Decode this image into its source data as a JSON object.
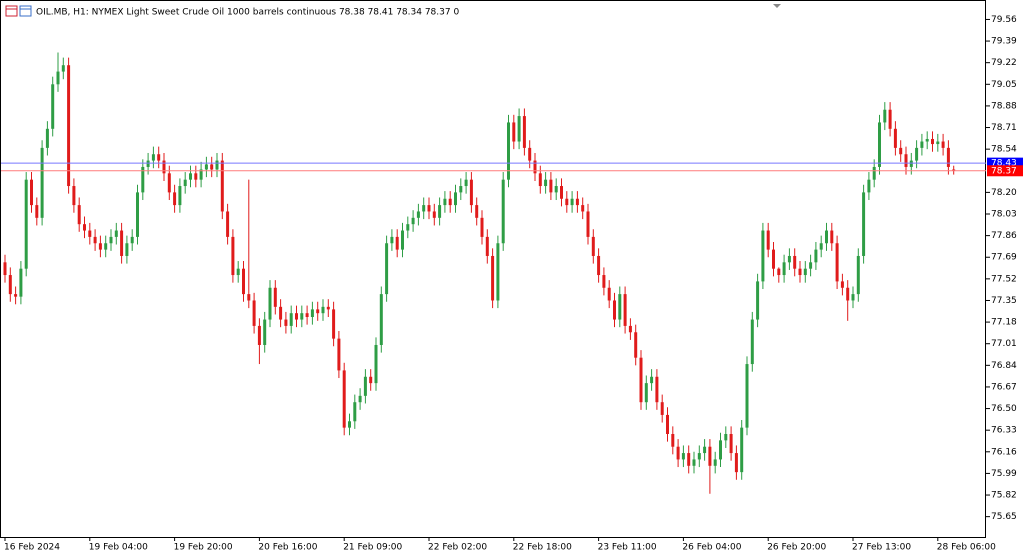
{
  "chart_data": {
    "type": "candlestick",
    "title": "OIL.MB, H1:  NYMEX Light Sweet Crude Oil 1000 barrels continuous  78.38 78.41 78.34 78.37  0",
    "up_color": "#2e9d45",
    "down_color": "#e01b1b",
    "ask": 78.43,
    "ask_color": "#7878ff",
    "bid": 78.37,
    "bid_color": "#ff7c7c",
    "ylim": [
      75.49,
      79.65
    ],
    "yticks": [
      79.56,
      79.39,
      79.22,
      79.05,
      78.88,
      78.71,
      78.54,
      {
        "value": 78.2,
        "label": "78.20"
      },
      78.03,
      77.86,
      77.69,
      77.52,
      77.35,
      77.18,
      77.01,
      76.84,
      76.67,
      {
        "value": 76.5,
        "label": "76.50"
      },
      76.33,
      76.16,
      75.99,
      75.82,
      75.65
    ],
    "categories": [
      "16 Feb 2024",
      null,
      null,
      null,
      null,
      null,
      null,
      null,
      null,
      null,
      null,
      null,
      null,
      null,
      null,
      null,
      "19 Feb 04:00",
      null,
      null,
      null,
      null,
      null,
      null,
      null,
      null,
      null,
      null,
      null,
      null,
      null,
      null,
      null,
      "19 Feb 20:00",
      null,
      null,
      null,
      null,
      null,
      null,
      null,
      null,
      null,
      null,
      null,
      null,
      null,
      null,
      null,
      "20 Feb 16:00",
      null,
      null,
      null,
      null,
      null,
      null,
      null,
      null,
      null,
      null,
      null,
      null,
      null,
      null,
      null,
      "21 Feb 09:00",
      null,
      null,
      null,
      null,
      null,
      null,
      null,
      null,
      null,
      null,
      null,
      null,
      null,
      null,
      null,
      "22 Feb 02:00",
      null,
      null,
      null,
      null,
      null,
      null,
      null,
      null,
      null,
      null,
      null,
      null,
      null,
      null,
      null,
      "22 Feb 18:00",
      null,
      null,
      null,
      null,
      null,
      null,
      null,
      null,
      null,
      null,
      null,
      null,
      null,
      null,
      null,
      "23 Feb 11:00",
      null,
      null,
      null,
      null,
      null,
      null,
      null,
      null,
      null,
      null,
      null,
      null,
      null,
      null,
      null,
      "26 Feb 04:00",
      null,
      null,
      null,
      null,
      null,
      null,
      null,
      null,
      null,
      null,
      null,
      null,
      null,
      null,
      null,
      "26 Feb 20:00",
      null,
      null,
      null,
      null,
      null,
      null,
      null,
      null,
      null,
      null,
      null,
      null,
      null,
      null,
      null,
      "27 Feb 13:00",
      null,
      null,
      null,
      null,
      null,
      null,
      null,
      null,
      null,
      null,
      null,
      null,
      null,
      null,
      null,
      "28 Feb 06:00",
      null,
      null,
      null
    ],
    "open": [
      77.65,
      77.55,
      77.4,
      77.38,
      77.6,
      78.3,
      78.1,
      78.0,
      78.55,
      78.7,
      79.05,
      79.15,
      79.2,
      78.25,
      78.1,
      77.95,
      77.9,
      77.85,
      77.8,
      77.75,
      77.8,
      77.85,
      77.9,
      77.7,
      77.8,
      77.85,
      78.2,
      78.4,
      78.45,
      78.5,
      78.45,
      78.35,
      78.2,
      78.1,
      78.25,
      78.3,
      78.35,
      78.3,
      78.38,
      78.42,
      78.38,
      78.45,
      78.05,
      77.85,
      77.55,
      77.6,
      77.4,
      77.35,
      77.15,
      77.0,
      77.2,
      77.45,
      77.3,
      77.2,
      77.15,
      77.25,
      77.2,
      77.25,
      77.22,
      77.28,
      77.25,
      77.3,
      77.28,
      77.05,
      76.8,
      76.35,
      76.4,
      76.55,
      76.6,
      76.75,
      76.7,
      77.0,
      77.4,
      77.8,
      77.85,
      77.75,
      77.9,
      77.95,
      78.0,
      78.05,
      78.1,
      78.05,
      78.0,
      78.1,
      78.15,
      78.1,
      78.2,
      78.25,
      78.3,
      78.1,
      78.0,
      77.85,
      77.7,
      77.35,
      77.8,
      78.3,
      78.75,
      78.6,
      78.8,
      78.55,
      78.45,
      78.35,
      78.25,
      78.3,
      78.2,
      78.25,
      78.15,
      78.1,
      78.15,
      78.1,
      78.05,
      77.85,
      77.7,
      77.55,
      77.45,
      77.35,
      77.2,
      77.4,
      77.15,
      77.1,
      76.9,
      76.55,
      76.7,
      76.75,
      76.55,
      76.45,
      76.3,
      76.2,
      76.1,
      76.15,
      76.05,
      76.1,
      76.15,
      76.2,
      76.05,
      76.1,
      76.25,
      76.3,
      76.15,
      76.0,
      76.35,
      76.85,
      77.2,
      77.5,
      77.9,
      77.75,
      77.6,
      77.55,
      77.65,
      77.7,
      77.6,
      77.55,
      77.6,
      77.65,
      77.75,
      77.8,
      77.9,
      77.8,
      77.5,
      77.45,
      77.35,
      77.4,
      77.7,
      78.2,
      78.3,
      78.4,
      78.75,
      78.85,
      78.7,
      78.55,
      78.5,
      78.4,
      78.45,
      78.55,
      78.6,
      78.62,
      78.58,
      78.6,
      78.55,
      78.38
    ],
    "high": [
      77.71,
      77.61,
      77.46,
      77.66,
      78.36,
      78.36,
      78.16,
      78.61,
      78.76,
      79.11,
      79.3,
      79.26,
      79.26,
      78.31,
      78.16,
      78.01,
      77.96,
      77.91,
      77.86,
      77.86,
      77.91,
      77.96,
      77.96,
      77.86,
      77.91,
      78.26,
      78.46,
      78.51,
      78.56,
      78.56,
      78.51,
      78.41,
      78.26,
      78.31,
      78.36,
      78.41,
      78.41,
      78.44,
      78.48,
      78.48,
      78.51,
      78.51,
      78.11,
      77.91,
      77.66,
      77.66,
      78.3,
      77.41,
      77.21,
      77.26,
      77.51,
      77.51,
      77.36,
      77.26,
      77.31,
      77.31,
      77.31,
      77.31,
      77.34,
      77.34,
      77.36,
      77.36,
      77.34,
      77.11,
      76.86,
      76.46,
      76.61,
      76.66,
      76.81,
      76.81,
      77.06,
      77.46,
      77.86,
      77.91,
      77.91,
      77.96,
      78.01,
      78.06,
      78.11,
      78.16,
      78.16,
      78.11,
      78.16,
      78.21,
      78.21,
      78.26,
      78.31,
      78.36,
      78.36,
      78.16,
      78.06,
      77.91,
      77.76,
      77.86,
      78.36,
      78.81,
      78.81,
      78.86,
      78.86,
      78.61,
      78.51,
      78.41,
      78.36,
      78.36,
      78.31,
      78.31,
      78.21,
      78.21,
      78.21,
      78.16,
      78.11,
      77.91,
      77.76,
      77.61,
      77.51,
      77.41,
      77.46,
      77.46,
      77.21,
      77.16,
      76.96,
      76.76,
      76.81,
      76.81,
      76.61,
      76.51,
      76.36,
      76.26,
      76.21,
      76.21,
      76.16,
      76.21,
      76.26,
      76.26,
      76.16,
      76.31,
      76.36,
      76.36,
      76.21,
      76.41,
      76.91,
      77.26,
      77.56,
      77.96,
      77.96,
      77.81,
      77.61,
      77.71,
      77.76,
      77.76,
      77.66,
      77.66,
      77.71,
      77.81,
      77.86,
      77.96,
      77.96,
      77.86,
      77.56,
      77.51,
      77.46,
      77.76,
      78.26,
      78.36,
      78.46,
      78.81,
      78.91,
      78.91,
      78.76,
      78.61,
      78.56,
      78.51,
      78.61,
      78.66,
      78.68,
      78.68,
      78.66,
      78.66,
      78.61,
      78.41
    ],
    "low": [
      77.49,
      77.34,
      77.32,
      77.32,
      77.54,
      78.04,
      77.94,
      77.94,
      78.49,
      78.64,
      78.99,
      79.09,
      78.19,
      78.04,
      77.89,
      77.84,
      77.79,
      77.74,
      77.69,
      77.69,
      77.74,
      77.79,
      77.64,
      77.64,
      77.74,
      77.79,
      78.14,
      78.34,
      78.39,
      78.39,
      78.29,
      78.14,
      78.04,
      78.04,
      78.19,
      78.24,
      78.24,
      78.24,
      78.32,
      78.32,
      78.32,
      77.99,
      77.79,
      77.49,
      77.49,
      77.34,
      77.29,
      77.09,
      76.85,
      76.94,
      77.14,
      77.24,
      77.14,
      77.09,
      77.09,
      77.14,
      77.14,
      77.16,
      77.16,
      77.19,
      77.19,
      77.22,
      76.99,
      76.74,
      76.29,
      76.29,
      76.34,
      76.49,
      76.54,
      76.64,
      76.64,
      76.94,
      77.34,
      77.74,
      77.69,
      77.69,
      77.84,
      77.89,
      77.94,
      77.99,
      77.99,
      77.94,
      77.94,
      78.04,
      78.04,
      78.04,
      78.14,
      78.19,
      78.04,
      77.94,
      77.79,
      77.64,
      77.29,
      77.29,
      77.74,
      78.24,
      78.54,
      78.54,
      78.49,
      78.39,
      78.29,
      78.19,
      78.19,
      78.14,
      78.14,
      78.09,
      78.04,
      78.04,
      78.04,
      77.99,
      77.79,
      77.64,
      77.49,
      77.39,
      77.29,
      77.14,
      77.14,
      77.09,
      77.04,
      76.84,
      76.49,
      76.49,
      76.64,
      76.49,
      76.39,
      76.24,
      76.14,
      76.04,
      76.04,
      75.99,
      75.99,
      76.04,
      76.09,
      75.83,
      75.99,
      76.04,
      76.19,
      76.09,
      75.94,
      75.94,
      76.29,
      76.79,
      77.14,
      77.44,
      77.69,
      77.54,
      77.49,
      77.49,
      77.59,
      77.54,
      77.49,
      77.49,
      77.54,
      77.59,
      77.69,
      77.74,
      77.74,
      77.44,
      77.39,
      77.19,
      77.29,
      77.34,
      77.64,
      78.14,
      78.24,
      78.34,
      78.69,
      78.64,
      78.49,
      78.44,
      78.34,
      78.34,
      78.39,
      78.49,
      78.54,
      78.52,
      78.52,
      78.49,
      78.34,
      78.34
    ],
    "close": [
      77.55,
      77.4,
      77.38,
      77.6,
      78.3,
      78.1,
      78.0,
      78.55,
      78.7,
      79.05,
      79.15,
      79.2,
      78.25,
      78.1,
      77.95,
      77.9,
      77.85,
      77.8,
      77.75,
      77.8,
      77.85,
      77.9,
      77.7,
      77.8,
      77.85,
      78.2,
      78.4,
      78.45,
      78.5,
      78.45,
      78.35,
      78.2,
      78.1,
      78.25,
      78.3,
      78.35,
      78.3,
      78.38,
      78.42,
      78.38,
      78.45,
      78.05,
      77.85,
      77.55,
      77.6,
      77.4,
      77.35,
      77.15,
      77.0,
      77.2,
      77.45,
      77.3,
      77.2,
      77.15,
      77.25,
      77.2,
      77.25,
      77.22,
      77.28,
      77.25,
      77.3,
      77.28,
      77.05,
      76.8,
      76.35,
      76.4,
      76.55,
      76.6,
      76.75,
      76.7,
      77.0,
      77.4,
      77.8,
      77.85,
      77.75,
      77.9,
      77.95,
      78.0,
      78.05,
      78.1,
      78.05,
      78.0,
      78.1,
      78.15,
      78.1,
      78.2,
      78.25,
      78.3,
      78.1,
      78.0,
      77.85,
      77.7,
      77.35,
      77.8,
      78.3,
      78.75,
      78.6,
      78.8,
      78.55,
      78.45,
      78.35,
      78.25,
      78.3,
      78.2,
      78.25,
      78.15,
      78.1,
      78.15,
      78.1,
      78.05,
      77.85,
      77.7,
      77.55,
      77.45,
      77.35,
      77.2,
      77.4,
      77.15,
      77.1,
      76.9,
      76.55,
      76.7,
      76.75,
      76.55,
      76.45,
      76.3,
      76.2,
      76.1,
      76.15,
      76.05,
      76.1,
      76.15,
      76.2,
      76.05,
      76.1,
      76.25,
      76.3,
      76.15,
      76.0,
      76.35,
      76.85,
      77.2,
      77.5,
      77.9,
      77.75,
      77.6,
      77.55,
      77.65,
      77.7,
      77.6,
      77.55,
      77.6,
      77.65,
      77.75,
      77.8,
      77.9,
      77.8,
      77.5,
      77.45,
      77.35,
      77.4,
      77.7,
      78.2,
      78.3,
      78.4,
      78.75,
      78.85,
      78.7,
      78.55,
      78.5,
      78.4,
      78.45,
      78.55,
      78.6,
      78.62,
      78.58,
      78.6,
      78.55,
      78.4,
      78.37
    ]
  }
}
